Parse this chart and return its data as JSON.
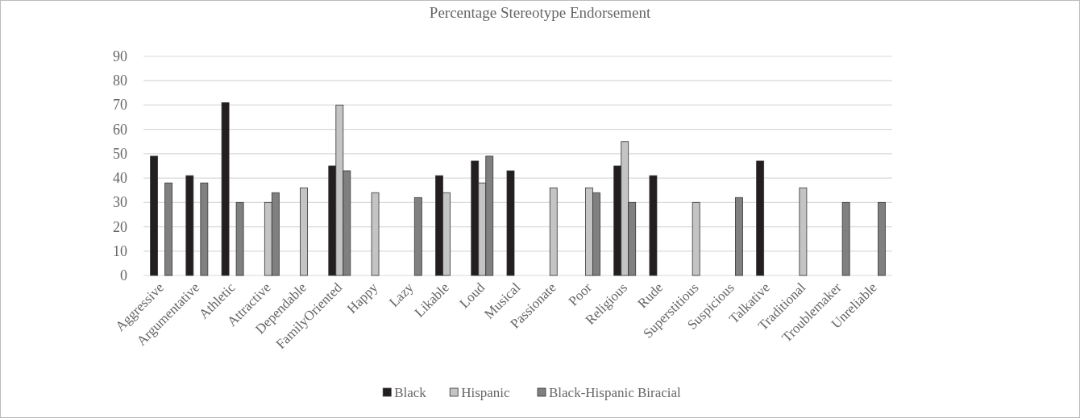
{
  "chart_data": {
    "type": "bar",
    "title": "Percentage Stereotype Endorsement",
    "categories": [
      "Aggressive",
      "Argumentative",
      "Athletic",
      "Attractive",
      "Dependable",
      "FamilyOriented",
      "Happy",
      "Lazy",
      "Likable",
      "Loud",
      "Musical",
      "Passionate",
      "Poor",
      "Religious",
      "Rude",
      "Superstitious",
      "Suspicious",
      "Talkative",
      "Traditional",
      "Troublemaker",
      "Unreliable"
    ],
    "series": [
      {
        "name": "Black",
        "color": "#231f20",
        "values": [
          49,
          41,
          71,
          null,
          null,
          45,
          null,
          null,
          41,
          47,
          43,
          null,
          null,
          45,
          41,
          null,
          null,
          47,
          null,
          null,
          null
        ]
      },
      {
        "name": "Hispanic",
        "color": "#c4c4c4",
        "values": [
          null,
          null,
          null,
          30,
          36,
          70,
          34,
          null,
          34,
          38,
          null,
          36,
          36,
          55,
          null,
          30,
          null,
          null,
          36,
          null,
          null
        ]
      },
      {
        "name": "Black-Hispanic Biracial",
        "color": "#808080",
        "values": [
          38,
          38,
          30,
          34,
          null,
          43,
          null,
          32,
          null,
          49,
          null,
          null,
          34,
          30,
          null,
          null,
          32,
          null,
          null,
          30,
          30
        ]
      }
    ],
    "ylim": [
      0,
      90
    ],
    "yticks": [
      0,
      10,
      20,
      30,
      40,
      50,
      60,
      70,
      80,
      90
    ],
    "grid": "y",
    "legend": "bottom"
  }
}
